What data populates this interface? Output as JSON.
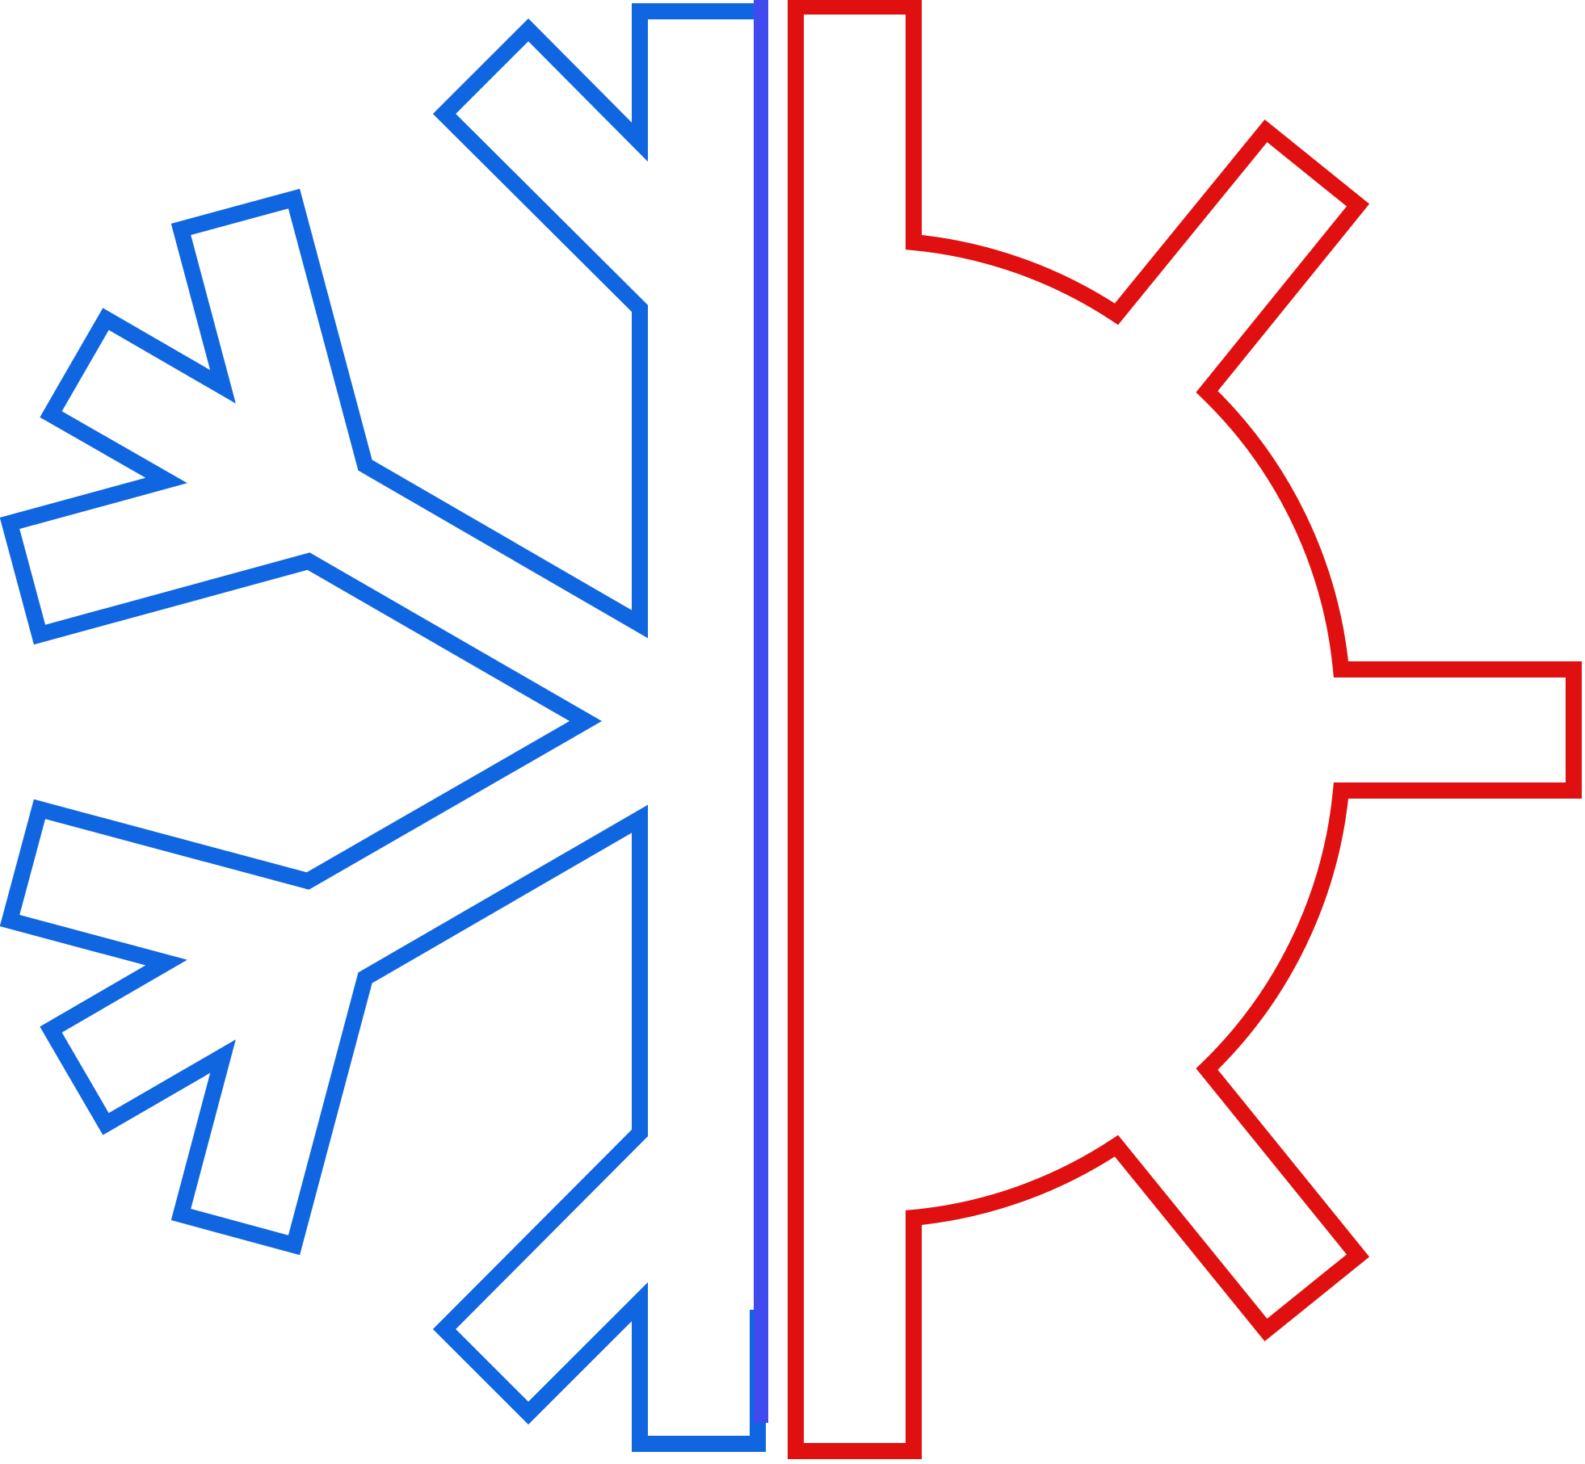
{
  "logo": {
    "left_half_icon": "snowflake-icon",
    "right_half_icon": "gear-icon"
  },
  "colors": {
    "snowflake_stroke": "#1066E0",
    "divider_stroke": "#3F4BEF",
    "gear_stroke": "#E01010",
    "background": "#FFFFFF"
  }
}
